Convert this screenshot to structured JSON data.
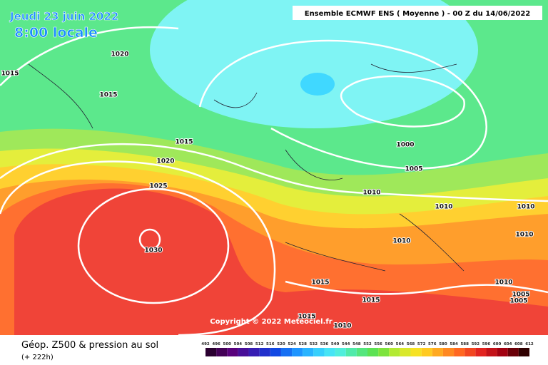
{
  "header": {
    "date": "Jeudi 23 juin 2022",
    "time": "8:00 locale",
    "run": "Ensemble ECMWF ENS  ( Moyenne )  -  00 Z du 14/06/2022"
  },
  "copyright": "Copyright © 2022 Meteociel.fr",
  "footer": {
    "title": "Géop. Z500 & pression au sol",
    "lead": "(+ 222h)"
  },
  "isobar_labels": [
    "1020",
    "1015",
    "1015",
    "1015",
    "1020",
    "1025",
    "1030",
    "1000",
    "1005",
    "1010",
    "1010",
    "1010",
    "1010",
    "1010",
    "1015",
    "1015",
    "1015",
    "1010",
    "1010",
    "1005",
    "1005"
  ],
  "scale_ticks": [
    492,
    496,
    500,
    504,
    508,
    512,
    516,
    520,
    524,
    528,
    532,
    536,
    540,
    544,
    548,
    552,
    556,
    560,
    564,
    568,
    572,
    576,
    580,
    584,
    588,
    592,
    596,
    600,
    604,
    608,
    612
  ]
}
